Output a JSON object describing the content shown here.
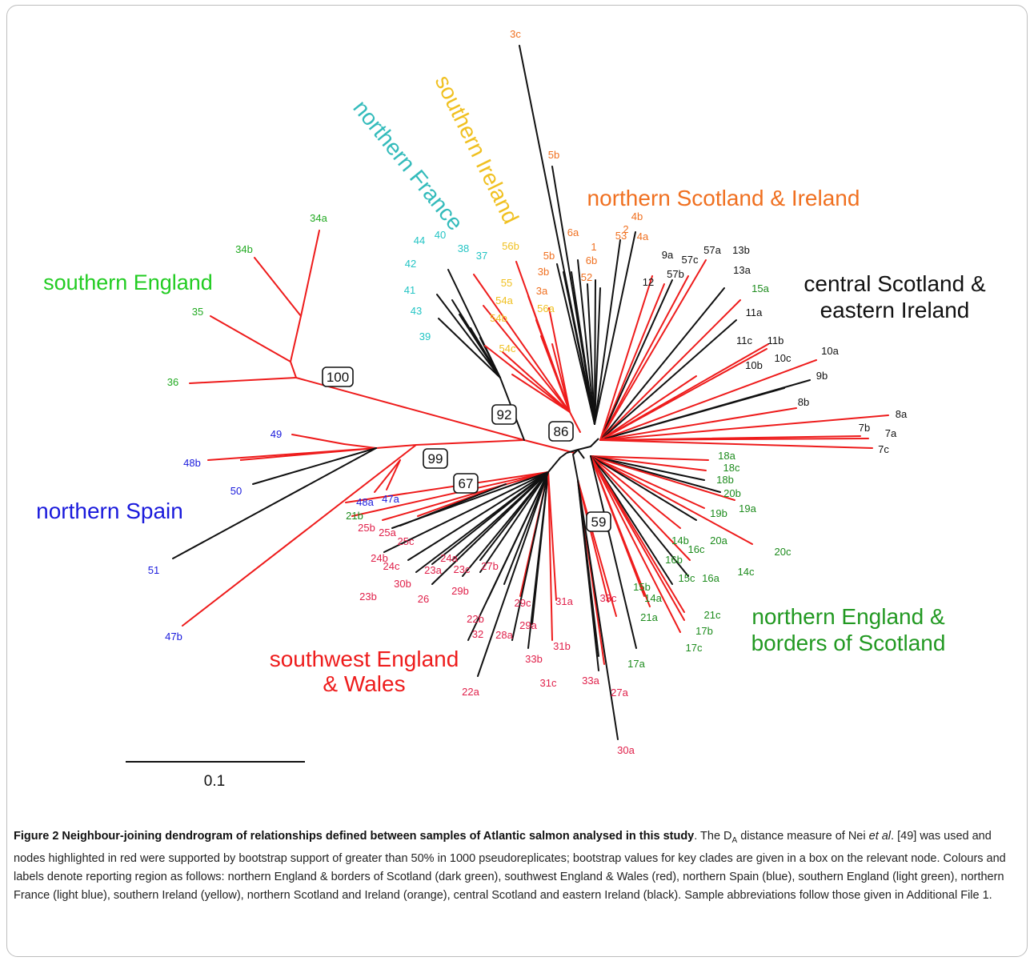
{
  "figure": {
    "scale_bar_label": "0.1",
    "region_labels": [
      {
        "key": "sw_england",
        "text": "southwest England\n& Wales",
        "color": "#ee1c1c"
      },
      {
        "key": "s_england",
        "text": "southern England",
        "color": "#22cc22"
      },
      {
        "key": "n_spain",
        "text": "northern Spain",
        "color": "#1a1adc"
      },
      {
        "key": "n_france",
        "text": "northern France",
        "color": "#33bbbb"
      },
      {
        "key": "s_ireland",
        "text": "southern Ireland",
        "color": "#f0c020"
      },
      {
        "key": "n_scotland",
        "text": "northern Scotland & Ireland",
        "color": "#f07020"
      },
      {
        "key": "c_scotland",
        "text": "central Scotland &\neastern Ireland",
        "color": "#111111"
      },
      {
        "key": "n_england",
        "text": "northern England &\nborders of Scotland",
        "color": "#229922"
      }
    ],
    "bootstrap_values": [
      "100",
      "92",
      "86",
      "99",
      "67",
      "59"
    ],
    "leaves": [
      {
        "label": "34a",
        "group": "s_england"
      },
      {
        "label": "34b",
        "group": "s_england"
      },
      {
        "label": "35",
        "group": "s_england"
      },
      {
        "label": "36",
        "group": "s_england"
      },
      {
        "label": "49",
        "group": "n_spain"
      },
      {
        "label": "48b",
        "group": "n_spain"
      },
      {
        "label": "50",
        "group": "n_spain"
      },
      {
        "label": "51",
        "group": "n_spain"
      },
      {
        "label": "47b",
        "group": "n_spain"
      },
      {
        "label": "48a",
        "group": "n_spain"
      },
      {
        "label": "47a",
        "group": "n_spain"
      },
      {
        "label": "44",
        "group": "n_france"
      },
      {
        "label": "40",
        "group": "n_france"
      },
      {
        "label": "42",
        "group": "n_france"
      },
      {
        "label": "38",
        "group": "n_france"
      },
      {
        "label": "37",
        "group": "n_france"
      },
      {
        "label": "41",
        "group": "n_france"
      },
      {
        "label": "43",
        "group": "n_france"
      },
      {
        "label": "39",
        "group": "n_france"
      },
      {
        "label": "56b",
        "group": "s_ireland"
      },
      {
        "label": "55",
        "group": "s_ireland"
      },
      {
        "label": "54a",
        "group": "s_ireland"
      },
      {
        "label": "54b",
        "group": "s_ireland"
      },
      {
        "label": "54c",
        "group": "s_ireland"
      },
      {
        "label": "56a",
        "group": "s_ireland"
      },
      {
        "label": "3c",
        "group": "n_scotland"
      },
      {
        "label": "5b",
        "group": "n_scotland"
      },
      {
        "label": "4b",
        "group": "n_scotland"
      },
      {
        "label": "6a",
        "group": "n_scotland"
      },
      {
        "label": "1",
        "group": "n_scotland"
      },
      {
        "label": "2",
        "group": "n_scotland"
      },
      {
        "label": "53",
        "group": "n_scotland"
      },
      {
        "label": "4a",
        "group": "n_scotland"
      },
      {
        "label": "5b",
        "group": "n_scotland"
      },
      {
        "label": "6b",
        "group": "n_scotland"
      },
      {
        "label": "3b",
        "group": "n_scotland"
      },
      {
        "label": "52",
        "group": "n_scotland"
      },
      {
        "label": "3a",
        "group": "n_scotland"
      },
      {
        "label": "9a",
        "group": "c_scotland"
      },
      {
        "label": "57c",
        "group": "c_scotland"
      },
      {
        "label": "57a",
        "group": "c_scotland"
      },
      {
        "label": "13b",
        "group": "c_scotland"
      },
      {
        "label": "57b",
        "group": "c_scotland"
      },
      {
        "label": "12",
        "group": "c_scotland"
      },
      {
        "label": "13a",
        "group": "c_scotland"
      },
      {
        "label": "11a",
        "group": "c_scotland"
      },
      {
        "label": "11c",
        "group": "c_scotland"
      },
      {
        "label": "11b",
        "group": "c_scotland"
      },
      {
        "label": "10c",
        "group": "c_scotland"
      },
      {
        "label": "10a",
        "group": "c_scotland"
      },
      {
        "label": "10b",
        "group": "c_scotland"
      },
      {
        "label": "9b",
        "group": "c_scotland"
      },
      {
        "label": "8b",
        "group": "c_scotland"
      },
      {
        "label": "8a",
        "group": "c_scotland"
      },
      {
        "label": "7b",
        "group": "c_scotland"
      },
      {
        "label": "7a",
        "group": "c_scotland"
      },
      {
        "label": "7c",
        "group": "c_scotland"
      },
      {
        "label": "15a",
        "group": "n_england"
      },
      {
        "label": "18a",
        "group": "n_england"
      },
      {
        "label": "18c",
        "group": "n_england"
      },
      {
        "label": "18b",
        "group": "n_england"
      },
      {
        "label": "20b",
        "group": "n_england"
      },
      {
        "label": "19a",
        "group": "n_england"
      },
      {
        "label": "19b",
        "group": "n_england"
      },
      {
        "label": "20a",
        "group": "n_england"
      },
      {
        "label": "20c",
        "group": "n_england"
      },
      {
        "label": "14b",
        "group": "n_england"
      },
      {
        "label": "16c",
        "group": "n_england"
      },
      {
        "label": "16b",
        "group": "n_england"
      },
      {
        "label": "14c",
        "group": "n_england"
      },
      {
        "label": "15c",
        "group": "n_england"
      },
      {
        "label": "16a",
        "group": "n_england"
      },
      {
        "label": "15b",
        "group": "n_england"
      },
      {
        "label": "14a",
        "group": "n_england"
      },
      {
        "label": "21a",
        "group": "n_england"
      },
      {
        "label": "21c",
        "group": "n_england"
      },
      {
        "label": "17b",
        "group": "n_england"
      },
      {
        "label": "17c",
        "group": "n_england"
      },
      {
        "label": "17a",
        "group": "n_england"
      },
      {
        "label": "21b",
        "group": "n_england"
      },
      {
        "label": "25b",
        "group": "sw_england"
      },
      {
        "label": "25a",
        "group": "sw_england"
      },
      {
        "label": "25c",
        "group": "sw_england"
      },
      {
        "label": "24b",
        "group": "sw_england"
      },
      {
        "label": "24c",
        "group": "sw_england"
      },
      {
        "label": "24a",
        "group": "sw_england"
      },
      {
        "label": "23a",
        "group": "sw_england"
      },
      {
        "label": "23c",
        "group": "sw_england"
      },
      {
        "label": "27b",
        "group": "sw_england"
      },
      {
        "label": "30b",
        "group": "sw_england"
      },
      {
        "label": "23b",
        "group": "sw_england"
      },
      {
        "label": "26",
        "group": "sw_england"
      },
      {
        "label": "29b",
        "group": "sw_england"
      },
      {
        "label": "29c",
        "group": "sw_england"
      },
      {
        "label": "31a",
        "group": "sw_england"
      },
      {
        "label": "33c",
        "group": "sw_england"
      },
      {
        "label": "22b",
        "group": "sw_england"
      },
      {
        "label": "32",
        "group": "sw_england"
      },
      {
        "label": "28a",
        "group": "sw_england"
      },
      {
        "label": "29a",
        "group": "sw_england"
      },
      {
        "label": "31b",
        "group": "sw_england"
      },
      {
        "label": "33b",
        "group": "sw_england"
      },
      {
        "label": "31c",
        "group": "sw_england"
      },
      {
        "label": "33a",
        "group": "sw_england"
      },
      {
        "label": "27a",
        "group": "sw_england"
      },
      {
        "label": "22a",
        "group": "sw_england"
      },
      {
        "label": "30a",
        "group": "sw_england"
      },
      {
        "label": "28b",
        "group": "sw_england"
      }
    ]
  },
  "caption": {
    "title": "Figure 2 Neighbour-joining dendrogram of relationships defined between samples of Atlantic salmon analysed in this study",
    "t1": ". The D",
    "sub": "A",
    "t2": " distance measure of Nei ",
    "etal": "et al",
    "t3": ". [49] was used and nodes highlighted in red were supported by bootstrap support of greater than 50% in 1000 pseudoreplicates; bootstrap values for key clades are given in a box on the relevant node. Colours and labels denote reporting region as follows: northern England & borders of Scotland (dark green), southwest England & Wales (red), northern Spain (blue), southern England (light green), northern France (light blue), southern Ireland (yellow), northern Scotland and Ireland (orange), central Scotland and eastern Ireland (black). Sample abbreviations follow those given in Additional File 1."
  }
}
